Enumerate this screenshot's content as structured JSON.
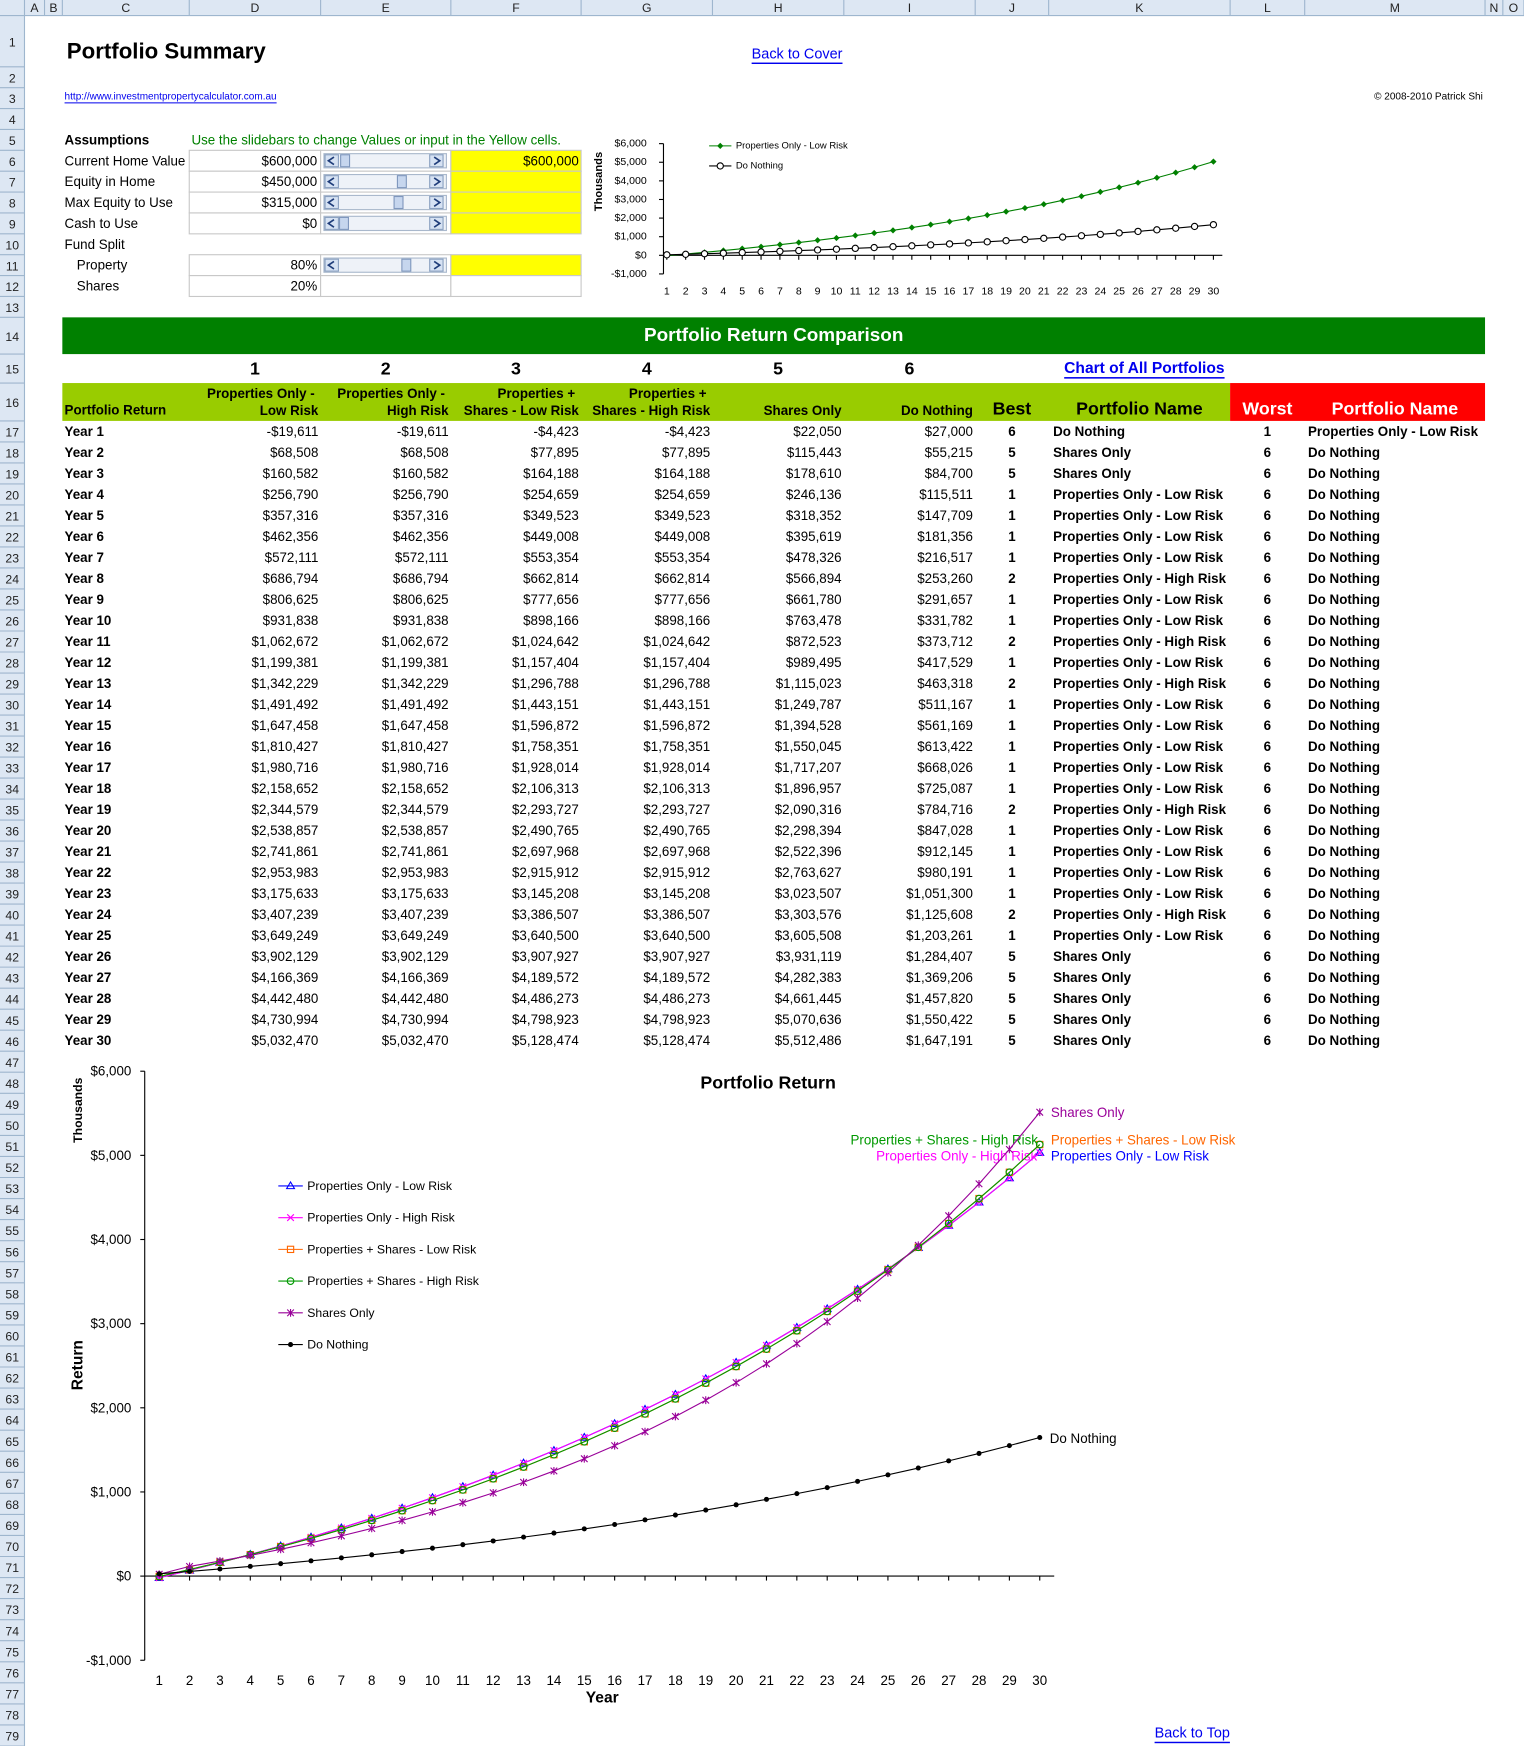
{
  "sheet": {
    "columns": [
      "A",
      "B",
      "C",
      "D",
      "E",
      "F",
      "G",
      "H",
      "I",
      "J",
      "K",
      "L",
      "M",
      "N",
      "O"
    ],
    "rows": [
      1,
      2,
      3,
      4,
      5,
      6,
      7,
      8,
      9,
      10,
      11,
      12,
      13,
      14,
      15,
      16,
      17,
      18,
      19,
      20,
      21,
      22,
      23,
      24,
      25,
      26,
      27,
      28,
      29,
      30,
      31,
      32,
      33,
      34,
      35,
      36,
      37,
      38,
      39,
      40,
      41,
      42,
      43,
      44,
      45,
      46,
      47,
      48,
      49,
      50,
      51,
      52,
      53,
      54,
      55,
      56,
      57,
      58,
      59,
      60,
      61,
      62,
      63,
      64,
      65,
      66,
      67,
      68,
      69,
      70,
      71,
      72,
      73,
      74,
      75,
      76,
      77,
      78,
      79
    ]
  },
  "header": {
    "title": "Portfolio Summary",
    "back_to_cover": "Back to Cover",
    "url": "http://www.investmentpropertycalculator.com.au",
    "copyright": "© 2008-2010 Patrick Shi",
    "back_to_top": "Back to Top"
  },
  "assumptions": {
    "title": "Assumptions",
    "hint": "Use the slidebars to change Values or input in the Yellow cells.",
    "items": [
      {
        "label": "Current Home Value",
        "value": "$600,000",
        "input": "$600,000",
        "slider": true,
        "yellow": true
      },
      {
        "label": "Equity in Home",
        "value": "$450,000",
        "slider": true,
        "yellow": true
      },
      {
        "label": "Max Equity to Use",
        "value": "$315,000",
        "slider": true,
        "yellow": true
      },
      {
        "label": "Cash to Use",
        "value": "$0",
        "slider": true,
        "yellow": true
      },
      {
        "label": "Fund Split"
      },
      {
        "label": "Property",
        "value": "80%",
        "slider": true,
        "yellow": true,
        "indent": true
      },
      {
        "label": "Shares",
        "value": "20%",
        "indent": true
      }
    ]
  },
  "comparison": {
    "title": "Portfolio Return Comparison",
    "numbers": [
      1,
      2,
      3,
      4,
      5,
      6
    ],
    "chart_link": "Chart of All Portfolios",
    "headers": [
      "Portfolio Return",
      "Properties Only - Low Risk",
      "Properties Only - High Risk",
      "Properties + Shares - Low Risk",
      "Properties + Shares - High Risk",
      "Shares Only",
      "Do Nothing",
      "Best",
      "Portfolio Name",
      "Worst",
      "Portfolio Name"
    ],
    "rows": [
      [
        "Year 1",
        "-$19,611",
        "-$19,611",
        "-$4,423",
        "-$4,423",
        "$22,050",
        "$27,000",
        6,
        "Do Nothing",
        1,
        "Properties Only - Low Risk"
      ],
      [
        "Year 2",
        "$68,508",
        "$68,508",
        "$77,895",
        "$77,895",
        "$115,443",
        "$55,215",
        5,
        "Shares Only",
        6,
        "Do Nothing"
      ],
      [
        "Year 3",
        "$160,582",
        "$160,582",
        "$164,188",
        "$164,188",
        "$178,610",
        "$84,700",
        5,
        "Shares Only",
        6,
        "Do Nothing"
      ],
      [
        "Year 4",
        "$256,790",
        "$256,790",
        "$254,659",
        "$254,659",
        "$246,136",
        "$115,511",
        1,
        "Properties Only - Low Risk",
        6,
        "Do Nothing"
      ],
      [
        "Year 5",
        "$357,316",
        "$357,316",
        "$349,523",
        "$349,523",
        "$318,352",
        "$147,709",
        1,
        "Properties Only - Low Risk",
        6,
        "Do Nothing"
      ],
      [
        "Year 6",
        "$462,356",
        "$462,356",
        "$449,008",
        "$449,008",
        "$395,619",
        "$181,356",
        1,
        "Properties Only - Low Risk",
        6,
        "Do Nothing"
      ],
      [
        "Year 7",
        "$572,111",
        "$572,111",
        "$553,354",
        "$553,354",
        "$478,326",
        "$216,517",
        1,
        "Properties Only - Low Risk",
        6,
        "Do Nothing"
      ],
      [
        "Year 8",
        "$686,794",
        "$686,794",
        "$662,814",
        "$662,814",
        "$566,894",
        "$253,260",
        2,
        "Properties Only - High Risk",
        6,
        "Do Nothing"
      ],
      [
        "Year 9",
        "$806,625",
        "$806,625",
        "$777,656",
        "$777,656",
        "$661,780",
        "$291,657",
        1,
        "Properties Only - Low Risk",
        6,
        "Do Nothing"
      ],
      [
        "Year 10",
        "$931,838",
        "$931,838",
        "$898,166",
        "$898,166",
        "$763,478",
        "$331,782",
        1,
        "Properties Only - Low Risk",
        6,
        "Do Nothing"
      ],
      [
        "Year 11",
        "$1,062,672",
        "$1,062,672",
        "$1,024,642",
        "$1,024,642",
        "$872,523",
        "$373,712",
        2,
        "Properties Only - High Risk",
        6,
        "Do Nothing"
      ],
      [
        "Year 12",
        "$1,199,381",
        "$1,199,381",
        "$1,157,404",
        "$1,157,404",
        "$989,495",
        "$417,529",
        1,
        "Properties Only - Low Risk",
        6,
        "Do Nothing"
      ],
      [
        "Year 13",
        "$1,342,229",
        "$1,342,229",
        "$1,296,788",
        "$1,296,788",
        "$1,115,023",
        "$463,318",
        2,
        "Properties Only - High Risk",
        6,
        "Do Nothing"
      ],
      [
        "Year 14",
        "$1,491,492",
        "$1,491,492",
        "$1,443,151",
        "$1,443,151",
        "$1,249,787",
        "$511,167",
        1,
        "Properties Only - Low Risk",
        6,
        "Do Nothing"
      ],
      [
        "Year 15",
        "$1,647,458",
        "$1,647,458",
        "$1,596,872",
        "$1,596,872",
        "$1,394,528",
        "$561,169",
        1,
        "Properties Only - Low Risk",
        6,
        "Do Nothing"
      ],
      [
        "Year 16",
        "$1,810,427",
        "$1,810,427",
        "$1,758,351",
        "$1,758,351",
        "$1,550,045",
        "$613,422",
        1,
        "Properties Only - Low Risk",
        6,
        "Do Nothing"
      ],
      [
        "Year 17",
        "$1,980,716",
        "$1,980,716",
        "$1,928,014",
        "$1,928,014",
        "$1,717,207",
        "$668,026",
        1,
        "Properties Only - Low Risk",
        6,
        "Do Nothing"
      ],
      [
        "Year 18",
        "$2,158,652",
        "$2,158,652",
        "$2,106,313",
        "$2,106,313",
        "$1,896,957",
        "$725,087",
        1,
        "Properties Only - Low Risk",
        6,
        "Do Nothing"
      ],
      [
        "Year 19",
        "$2,344,579",
        "$2,344,579",
        "$2,293,727",
        "$2,293,727",
        "$2,090,316",
        "$784,716",
        2,
        "Properties Only - High Risk",
        6,
        "Do Nothing"
      ],
      [
        "Year 20",
        "$2,538,857",
        "$2,538,857",
        "$2,490,765",
        "$2,490,765",
        "$2,298,394",
        "$847,028",
        1,
        "Properties Only - Low Risk",
        6,
        "Do Nothing"
      ],
      [
        "Year 21",
        "$2,741,861",
        "$2,741,861",
        "$2,697,968",
        "$2,697,968",
        "$2,522,396",
        "$912,145",
        1,
        "Properties Only - Low Risk",
        6,
        "Do Nothing"
      ],
      [
        "Year 22",
        "$2,953,983",
        "$2,953,983",
        "$2,915,912",
        "$2,915,912",
        "$2,763,627",
        "$980,191",
        1,
        "Properties Only - Low Risk",
        6,
        "Do Nothing"
      ],
      [
        "Year 23",
        "$3,175,633",
        "$3,175,633",
        "$3,145,208",
        "$3,145,208",
        "$3,023,507",
        "$1,051,300",
        1,
        "Properties Only - Low Risk",
        6,
        "Do Nothing"
      ],
      [
        "Year 24",
        "$3,407,239",
        "$3,407,239",
        "$3,386,507",
        "$3,386,507",
        "$3,303,576",
        "$1,125,608",
        2,
        "Properties Only - High Risk",
        6,
        "Do Nothing"
      ],
      [
        "Year 25",
        "$3,649,249",
        "$3,649,249",
        "$3,640,500",
        "$3,640,500",
        "$3,605,508",
        "$1,203,261",
        1,
        "Properties Only - Low Risk",
        6,
        "Do Nothing"
      ],
      [
        "Year 26",
        "$3,902,129",
        "$3,902,129",
        "$3,907,927",
        "$3,907,927",
        "$3,931,119",
        "$1,284,407",
        5,
        "Shares Only",
        6,
        "Do Nothing"
      ],
      [
        "Year 27",
        "$4,166,369",
        "$4,166,369",
        "$4,189,572",
        "$4,189,572",
        "$4,282,383",
        "$1,369,206",
        5,
        "Shares Only",
        6,
        "Do Nothing"
      ],
      [
        "Year 28",
        "$4,442,480",
        "$4,442,480",
        "$4,486,273",
        "$4,486,273",
        "$4,661,445",
        "$1,457,820",
        5,
        "Shares Only",
        6,
        "Do Nothing"
      ],
      [
        "Year 29",
        "$4,730,994",
        "$4,730,994",
        "$4,798,923",
        "$4,798,923",
        "$5,070,636",
        "$1,550,422",
        5,
        "Shares Only",
        6,
        "Do Nothing"
      ],
      [
        "Year 30",
        "$5,032,470",
        "$5,032,470",
        "$5,128,474",
        "$5,128,474",
        "$5,512,486",
        "$1,647,191",
        5,
        "Shares Only",
        6,
        "Do Nothing"
      ]
    ]
  },
  "chart_data": [
    {
      "type": "line",
      "y_scale_label": "Thousands",
      "x": [
        1,
        2,
        3,
        4,
        5,
        6,
        7,
        8,
        9,
        10,
        11,
        12,
        13,
        14,
        15,
        16,
        17,
        18,
        19,
        20,
        21,
        22,
        23,
        24,
        25,
        26,
        27,
        28,
        29,
        30
      ],
      "xlim": [
        1,
        30
      ],
      "xticks": [
        1,
        2,
        3,
        4,
        5,
        6,
        7,
        8,
        9,
        10,
        11,
        12,
        13,
        14,
        15,
        16,
        17,
        18,
        19,
        20,
        21,
        22,
        23,
        24,
        25,
        26,
        27,
        28,
        29,
        30
      ],
      "ylim": [
        -1000,
        6000
      ],
      "yticks": [
        {
          "value": -1000,
          "label": "-$1,000"
        },
        {
          "value": 0,
          "label": "$0"
        },
        {
          "value": 1000,
          "label": "$1,000"
        },
        {
          "value": 2000,
          "label": "$2,000"
        },
        {
          "value": 3000,
          "label": "$3,000"
        },
        {
          "value": 4000,
          "label": "$4,000"
        },
        {
          "value": 5000,
          "label": "$5,000"
        },
        {
          "value": 6000,
          "label": "$6,000"
        }
      ],
      "series": [
        {
          "name": "Properties Only - Low Risk",
          "color": "#008000",
          "marker": "diamond",
          "values": [
            -19.611,
            68.508,
            160.582,
            256.79,
            357.316,
            462.356,
            572.111,
            686.794,
            806.625,
            931.838,
            1062.672,
            1199.381,
            1342.229,
            1491.492,
            1647.458,
            1810.427,
            1980.716,
            2158.652,
            2344.579,
            2538.857,
            2741.861,
            2953.983,
            3175.633,
            3407.239,
            3649.249,
            3902.129,
            4166.369,
            4442.48,
            4730.994,
            5032.47
          ]
        },
        {
          "name": "Do Nothing",
          "color": "#000000",
          "marker": "open-circle",
          "values": [
            27,
            55.215,
            84.7,
            115.511,
            147.709,
            181.356,
            216.517,
            253.26,
            291.657,
            331.782,
            373.712,
            417.529,
            463.318,
            511.167,
            561.169,
            613.422,
            668.026,
            725.087,
            784.716,
            847.028,
            912.145,
            980.191,
            1051.3,
            1125.608,
            1203.261,
            1284.407,
            1369.206,
            1457.82,
            1550.422,
            1647.191
          ]
        }
      ]
    },
    {
      "type": "line",
      "title": "Portfolio Return",
      "y_label": "Return",
      "y_scale_label": "Thousands",
      "x_label": "Year",
      "end_labels": true,
      "x": [
        1,
        2,
        3,
        4,
        5,
        6,
        7,
        8,
        9,
        10,
        11,
        12,
        13,
        14,
        15,
        16,
        17,
        18,
        19,
        20,
        21,
        22,
        23,
        24,
        25,
        26,
        27,
        28,
        29,
        30
      ],
      "xlim": [
        1,
        30
      ],
      "xticks": [
        1,
        2,
        3,
        4,
        5,
        6,
        7,
        8,
        9,
        10,
        11,
        12,
        13,
        14,
        15,
        16,
        17,
        18,
        19,
        20,
        21,
        22,
        23,
        24,
        25,
        26,
        27,
        28,
        29,
        30
      ],
      "ylim": [
        -1000,
        6000
      ],
      "yticks": [
        {
          "value": -1000,
          "label": "-$1,000"
        },
        {
          "value": 0,
          "label": "$0"
        },
        {
          "value": 1000,
          "label": "$1,000"
        },
        {
          "value": 2000,
          "label": "$2,000"
        },
        {
          "value": 3000,
          "label": "$3,000"
        },
        {
          "value": 4000,
          "label": "$4,000"
        },
        {
          "value": 5000,
          "label": "$5,000"
        },
        {
          "value": 6000,
          "label": "$6,000"
        }
      ],
      "series": [
        {
          "name": "Properties Only - Low Risk",
          "color": "#0000ff",
          "marker": "triangle",
          "values": [
            -19.611,
            68.508,
            160.582,
            256.79,
            357.316,
            462.356,
            572.111,
            686.794,
            806.625,
            931.838,
            1062.672,
            1199.381,
            1342.229,
            1491.492,
            1647.458,
            1810.427,
            1980.716,
            2158.652,
            2344.579,
            2538.857,
            2741.861,
            2953.983,
            3175.633,
            3407.239,
            3649.249,
            3902.129,
            4166.369,
            4442.48,
            4730.994,
            5032.47
          ]
        },
        {
          "name": "Properties Only - High Risk",
          "color": "#ff00ff",
          "marker": "x",
          "values": [
            -19.611,
            68.508,
            160.582,
            256.79,
            357.316,
            462.356,
            572.111,
            686.794,
            806.625,
            931.838,
            1062.672,
            1199.381,
            1342.229,
            1491.492,
            1647.458,
            1810.427,
            1980.716,
            2158.652,
            2344.579,
            2538.857,
            2741.861,
            2953.983,
            3175.633,
            3407.239,
            3649.249,
            3902.129,
            4166.369,
            4442.48,
            4730.994,
            5032.47
          ]
        },
        {
          "name": "Properties + Shares - Low Risk",
          "color": "#ff6600",
          "marker": "square",
          "values": [
            -4.423,
            77.895,
            164.188,
            254.659,
            349.523,
            449.008,
            553.354,
            662.814,
            777.656,
            898.166,
            1024.642,
            1157.404,
            1296.788,
            1443.151,
            1596.872,
            1758.351,
            1928.014,
            2106.313,
            2293.727,
            2490.765,
            2697.968,
            2915.912,
            3145.208,
            3386.507,
            3640.5,
            3907.927,
            4189.572,
            4486.273,
            4798.923,
            5128.474
          ]
        },
        {
          "name": "Properties + Shares - High Risk",
          "color": "#009900",
          "marker": "circle",
          "values": [
            -4.423,
            77.895,
            164.188,
            254.659,
            349.523,
            449.008,
            553.354,
            662.814,
            777.656,
            898.166,
            1024.642,
            1157.404,
            1296.788,
            1443.151,
            1596.872,
            1758.351,
            1928.014,
            2106.313,
            2293.727,
            2490.765,
            2697.968,
            2915.912,
            3145.208,
            3386.507,
            3640.5,
            3907.927,
            4189.572,
            4486.273,
            4798.923,
            5128.474
          ]
        },
        {
          "name": "Shares Only",
          "color": "#990099",
          "marker": "asterisk",
          "values": [
            22.05,
            115.443,
            178.61,
            246.136,
            318.352,
            395.619,
            478.326,
            566.894,
            661.78,
            763.478,
            872.523,
            989.495,
            1115.023,
            1249.787,
            1394.528,
            1550.045,
            1717.207,
            1896.957,
            2090.316,
            2298.394,
            2522.396,
            2763.627,
            3023.507,
            3303.576,
            3605.508,
            3931.119,
            4282.383,
            4661.445,
            5070.636,
            5512.486
          ]
        },
        {
          "name": "Do Nothing",
          "color": "#000000",
          "marker": "dot",
          "values": [
            27,
            55.215,
            84.7,
            115.511,
            147.709,
            181.356,
            216.517,
            253.26,
            291.657,
            331.782,
            373.712,
            417.529,
            463.318,
            511.167,
            561.169,
            613.422,
            668.026,
            725.087,
            784.716,
            847.028,
            912.145,
            980.191,
            1051.3,
            1125.608,
            1203.261,
            1284.407,
            1369.206,
            1457.82,
            1550.422,
            1647.191
          ]
        }
      ]
    }
  ]
}
